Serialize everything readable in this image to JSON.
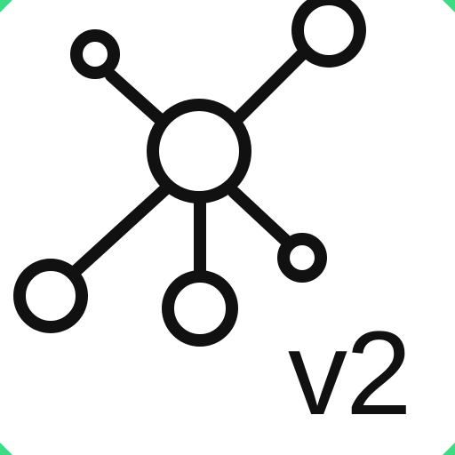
{
  "icon": {
    "name": "network-hub-icon",
    "stroke_color": "#111111",
    "accent_color": "#3ddc84",
    "background_color": "#ffffff"
  },
  "version_label": "v2"
}
